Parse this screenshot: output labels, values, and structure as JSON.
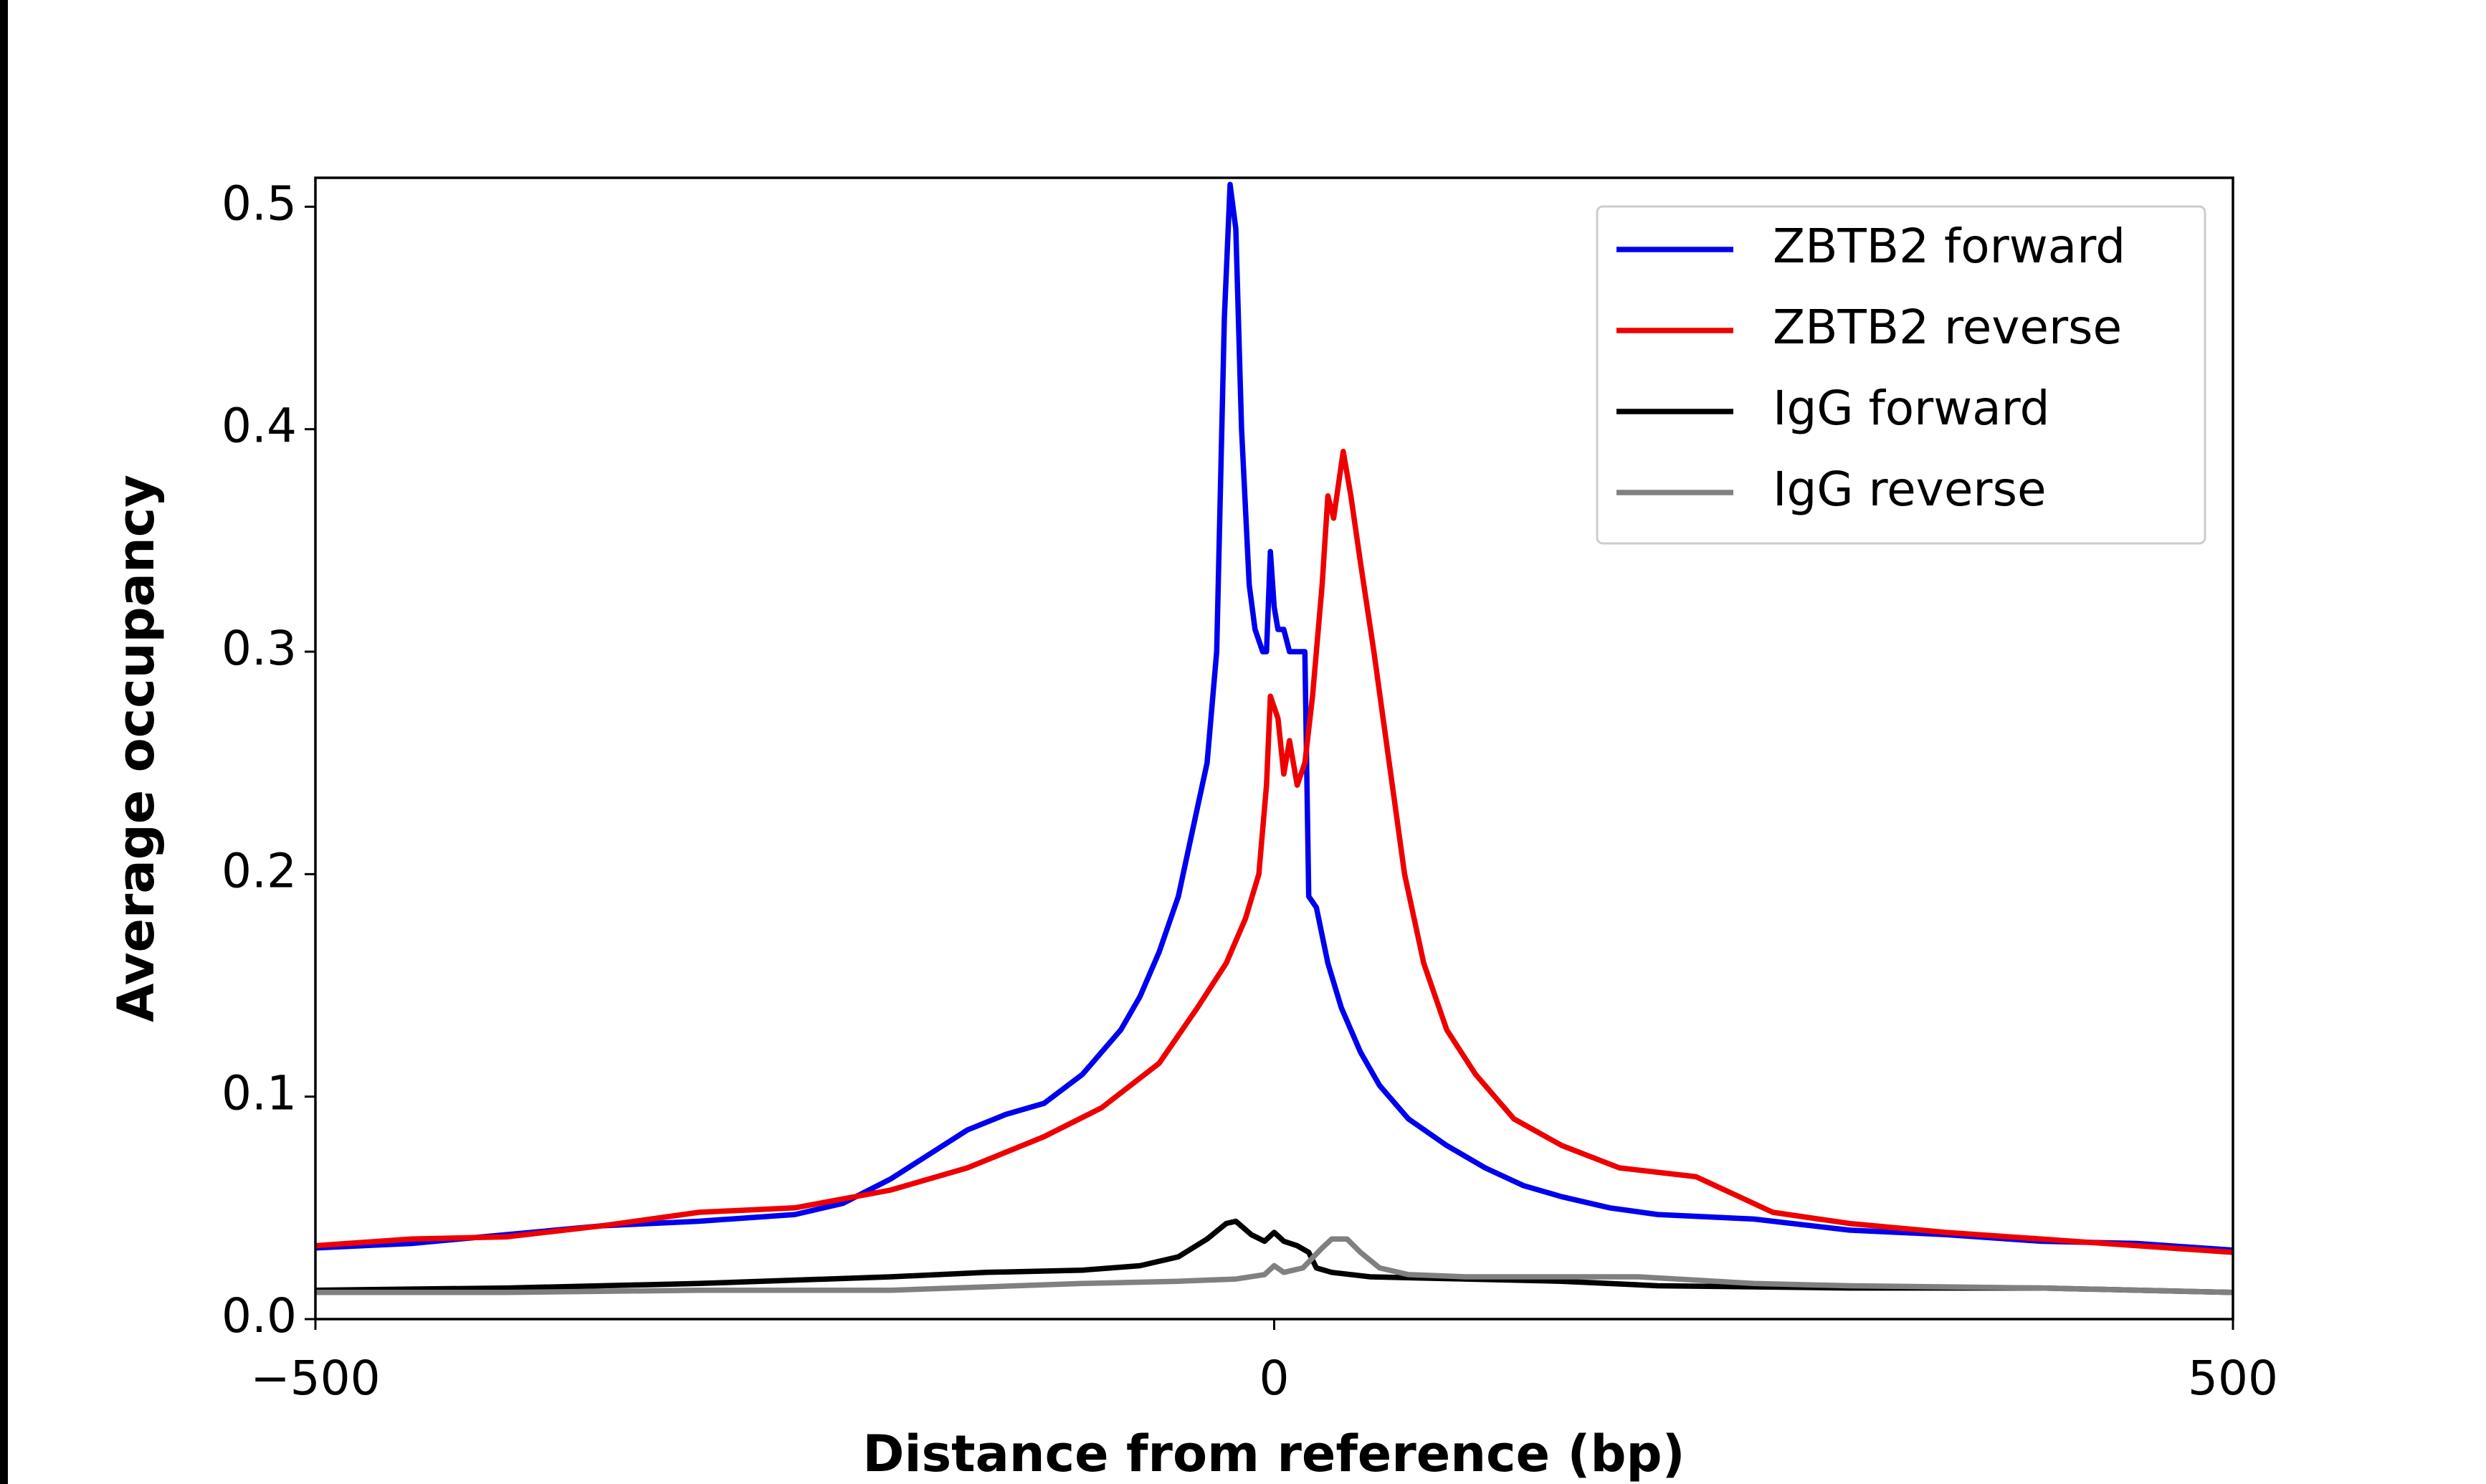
{
  "chart_data": {
    "type": "line",
    "xlabel": "Distance from reference (bp)",
    "ylabel": "Average occupancy",
    "xlim": [
      -500,
      500
    ],
    "ylim": [
      0,
      0.513
    ],
    "xticks": [
      {
        "value": -500,
        "label": "−500"
      },
      0,
      500
    ],
    "yticks": [
      {
        "value": 0,
        "label": "0.0"
      },
      0.1,
      0.2,
      0.3,
      0.4,
      0.5
    ],
    "legend": "upper right",
    "series": [
      {
        "name": "ZBTB2 forward",
        "color": "#0000ee",
        "x": [
          -500,
          -450,
          -400,
          -350,
          -300,
          -250,
          -225,
          -200,
          -180,
          -160,
          -140,
          -120,
          -100,
          -80,
          -70,
          -60,
          -50,
          -40,
          -35,
          -30,
          -26,
          -23,
          -20,
          -17,
          -13,
          -10,
          -6,
          -4,
          -2,
          0,
          2,
          5,
          8,
          12,
          16,
          18,
          22,
          28,
          35,
          45,
          55,
          70,
          90,
          110,
          130,
          150,
          175,
          200,
          250,
          300,
          350,
          400,
          450,
          500
        ],
        "values": [
          0.032,
          0.034,
          0.038,
          0.042,
          0.044,
          0.047,
          0.052,
          0.063,
          0.074,
          0.085,
          0.092,
          0.097,
          0.11,
          0.13,
          0.145,
          0.165,
          0.19,
          0.23,
          0.25,
          0.3,
          0.45,
          0.51,
          0.49,
          0.4,
          0.33,
          0.31,
          0.3,
          0.3,
          0.345,
          0.32,
          0.31,
          0.31,
          0.3,
          0.3,
          0.3,
          0.19,
          0.185,
          0.16,
          0.14,
          0.12,
          0.105,
          0.09,
          0.078,
          0.068,
          0.06,
          0.055,
          0.05,
          0.047,
          0.045,
          0.04,
          0.038,
          0.035,
          0.034,
          0.031
        ]
      },
      {
        "name": "ZBTB2 reverse",
        "color": "#ee0000",
        "x": [
          -500,
          -450,
          -400,
          -350,
          -300,
          -250,
          -200,
          -160,
          -120,
          -90,
          -60,
          -40,
          -25,
          -15,
          -8,
          -4,
          -2,
          2,
          5,
          8,
          12,
          16,
          20,
          25,
          28,
          31,
          36,
          40,
          45,
          52,
          60,
          68,
          78,
          90,
          105,
          125,
          150,
          180,
          220,
          230,
          260,
          300,
          350,
          400,
          450,
          500
        ],
        "values": [
          0.033,
          0.036,
          0.037,
          0.042,
          0.048,
          0.05,
          0.058,
          0.068,
          0.082,
          0.095,
          0.115,
          0.14,
          0.16,
          0.18,
          0.2,
          0.24,
          0.28,
          0.27,
          0.245,
          0.26,
          0.24,
          0.25,
          0.28,
          0.33,
          0.37,
          0.36,
          0.39,
          0.37,
          0.34,
          0.3,
          0.25,
          0.2,
          0.16,
          0.13,
          0.11,
          0.09,
          0.078,
          0.068,
          0.064,
          0.06,
          0.048,
          0.043,
          0.039,
          0.036,
          0.033,
          0.03
        ]
      },
      {
        "name": "IgG forward",
        "color": "#000000",
        "x": [
          -500,
          -400,
          -300,
          -200,
          -150,
          -100,
          -70,
          -50,
          -35,
          -25,
          -20,
          -12,
          -5,
          0,
          5,
          12,
          18,
          22,
          30,
          50,
          100,
          150,
          200,
          300,
          400,
          500
        ],
        "values": [
          0.013,
          0.014,
          0.016,
          0.019,
          0.021,
          0.022,
          0.024,
          0.028,
          0.036,
          0.043,
          0.044,
          0.038,
          0.035,
          0.039,
          0.035,
          0.033,
          0.03,
          0.023,
          0.021,
          0.019,
          0.018,
          0.017,
          0.015,
          0.014,
          0.014,
          0.012
        ]
      },
      {
        "name": "IgG reverse",
        "color": "#808080",
        "x": [
          -500,
          -400,
          -300,
          -200,
          -100,
          -50,
          -20,
          -5,
          0,
          5,
          15,
          25,
          30,
          38,
          45,
          55,
          70,
          100,
          150,
          190,
          250,
          300,
          400,
          500
        ],
        "values": [
          0.012,
          0.012,
          0.013,
          0.013,
          0.016,
          0.017,
          0.018,
          0.02,
          0.024,
          0.021,
          0.023,
          0.032,
          0.036,
          0.036,
          0.03,
          0.023,
          0.02,
          0.019,
          0.019,
          0.019,
          0.016,
          0.015,
          0.014,
          0.012
        ]
      }
    ]
  }
}
